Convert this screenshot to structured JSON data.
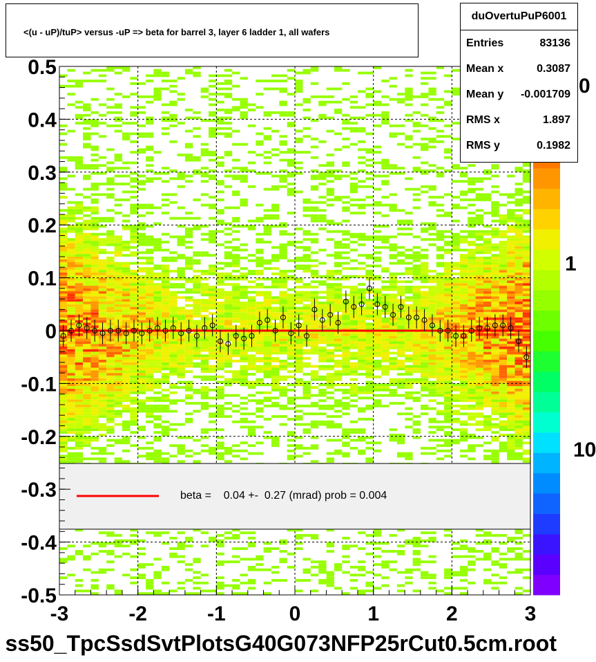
{
  "title": "<(u - uP)/tuP> versus  -uP => beta for barrel 3, layer 6 ladder 1, all wafers",
  "footer": "ss50_TpcSsdSvtPlotsG40G073NFP25rCut0.5cm.root",
  "stats": {
    "name": "duOvertuPuP6001",
    "rows": [
      {
        "label": "Entries",
        "value": "83136"
      },
      {
        "label": "Mean x",
        "value": "0.3087"
      },
      {
        "label": "Mean y",
        "value": "-0.001709"
      },
      {
        "label": "RMS x",
        "value": "1.897"
      },
      {
        "label": "RMS y",
        "value": "0.1982"
      }
    ]
  },
  "legend": {
    "text": "beta =    0.04 +-  0.27 (mrad) prob = 0.004",
    "color": "#ff0000"
  },
  "palette": {
    "labels": [
      "0",
      "1",
      "10"
    ],
    "colors": [
      "#7f00ff",
      "#5a00ff",
      "#3a14ff",
      "#1e3cff",
      "#0f64ff",
      "#008cff",
      "#00b4ff",
      "#00e1ff",
      "#00ffd0",
      "#00ff96",
      "#00ff64",
      "#1eff32",
      "#46ff00",
      "#6eff00",
      "#96ff00",
      "#b4ff00",
      "#d2ff00",
      "#f0f000",
      "#ffd200",
      "#ffb400",
      "#ff9600",
      "#ff7800",
      "#ff5a00",
      "#ff3c00",
      "#ff1e00",
      "#ff0000"
    ]
  },
  "chart_data": {
    "type": "heatmap",
    "x_ticks": [
      "-3",
      "-2",
      "-1",
      "0",
      "1",
      "2",
      "3"
    ],
    "y_ticks": [
      "-0.5",
      "-0.4",
      "-0.3",
      "-0.2",
      "-0.1",
      "0",
      "0.1",
      "0.2",
      "0.3",
      "0.4",
      "0.5"
    ],
    "xlim": [
      -3,
      3
    ],
    "ylim": [
      -0.5,
      0.5
    ],
    "grid": true,
    "fit_line": {
      "y": 0.0,
      "color": "#ff0000"
    },
    "profile_points": [
      {
        "x": -2.95,
        "y": -0.01
      },
      {
        "x": -2.85,
        "y": 0.0
      },
      {
        "x": -2.75,
        "y": 0.01
      },
      {
        "x": -2.65,
        "y": 0.005
      },
      {
        "x": -2.55,
        "y": 0.0
      },
      {
        "x": -2.45,
        "y": -0.005
      },
      {
        "x": -2.35,
        "y": 0.0
      },
      {
        "x": -2.25,
        "y": 0.0
      },
      {
        "x": -2.15,
        "y": -0.005
      },
      {
        "x": -2.05,
        "y": 0.0
      },
      {
        "x": -1.95,
        "y": -0.005
      },
      {
        "x": -1.85,
        "y": 0.0
      },
      {
        "x": -1.75,
        "y": 0.005
      },
      {
        "x": -1.65,
        "y": 0.0
      },
      {
        "x": -1.55,
        "y": 0.005
      },
      {
        "x": -1.45,
        "y": -0.005
      },
      {
        "x": -1.35,
        "y": 0.0
      },
      {
        "x": -1.25,
        "y": -0.01
      },
      {
        "x": -1.15,
        "y": 0.005
      },
      {
        "x": -1.05,
        "y": 0.01
      },
      {
        "x": -0.95,
        "y": -0.02
      },
      {
        "x": -0.85,
        "y": -0.025
      },
      {
        "x": -0.75,
        "y": -0.01
      },
      {
        "x": -0.65,
        "y": -0.015
      },
      {
        "x": -0.55,
        "y": -0.01
      },
      {
        "x": -0.45,
        "y": 0.015
      },
      {
        "x": -0.35,
        "y": 0.02
      },
      {
        "x": -0.25,
        "y": 0.0
      },
      {
        "x": -0.15,
        "y": 0.025
      },
      {
        "x": -0.05,
        "y": -0.005
      },
      {
        "x": 0.05,
        "y": 0.01
      },
      {
        "x": 0.15,
        "y": -0.01
      },
      {
        "x": 0.25,
        "y": 0.04
      },
      {
        "x": 0.35,
        "y": 0.02
      },
      {
        "x": 0.45,
        "y": 0.03
      },
      {
        "x": 0.55,
        "y": 0.015
      },
      {
        "x": 0.65,
        "y": 0.055
      },
      {
        "x": 0.75,
        "y": 0.045
      },
      {
        "x": 0.85,
        "y": 0.05
      },
      {
        "x": 0.95,
        "y": 0.08
      },
      {
        "x": 1.05,
        "y": 0.05
      },
      {
        "x": 1.15,
        "y": 0.045
      },
      {
        "x": 1.25,
        "y": 0.03
      },
      {
        "x": 1.35,
        "y": 0.045
      },
      {
        "x": 1.45,
        "y": 0.025
      },
      {
        "x": 1.55,
        "y": 0.025
      },
      {
        "x": 1.65,
        "y": 0.02
      },
      {
        "x": 1.75,
        "y": 0.01
      },
      {
        "x": 1.85,
        "y": 0.0
      },
      {
        "x": 1.95,
        "y": 0.0
      },
      {
        "x": 2.05,
        "y": -0.01
      },
      {
        "x": 2.15,
        "y": -0.01
      },
      {
        "x": 2.25,
        "y": 0.0
      },
      {
        "x": 2.35,
        "y": 0.005
      },
      {
        "x": 2.45,
        "y": 0.005
      },
      {
        "x": 2.55,
        "y": 0.01
      },
      {
        "x": 2.65,
        "y": 0.01
      },
      {
        "x": 2.75,
        "y": 0.005
      },
      {
        "x": 2.85,
        "y": -0.02
      },
      {
        "x": 2.95,
        "y": -0.05
      }
    ]
  }
}
